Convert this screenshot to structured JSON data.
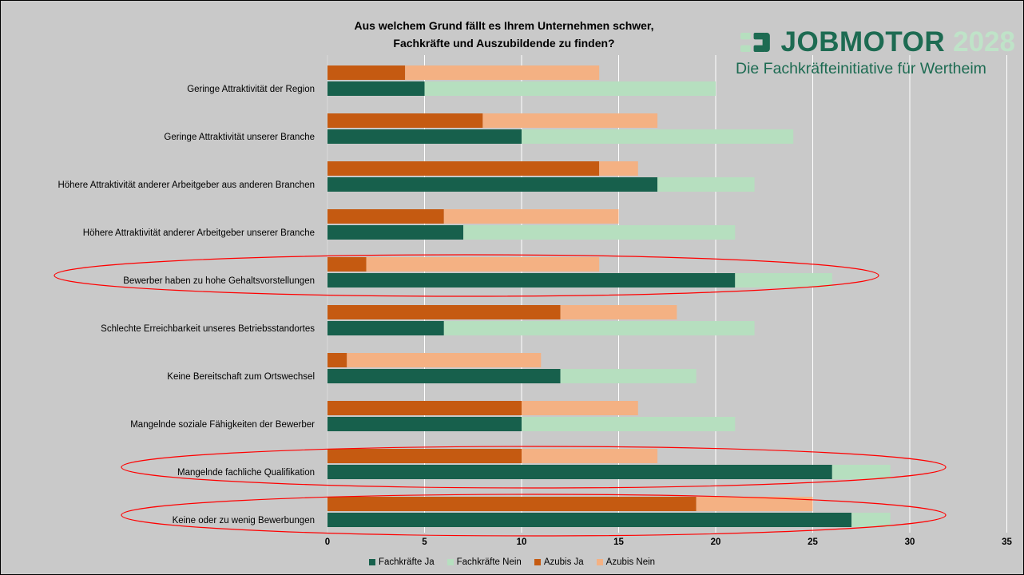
{
  "title": {
    "line1": "Aus welchem Grund fällt es Ihrem Unternehmen schwer,",
    "line2": "Fachkräfte und Auszubildende zu finden?"
  },
  "logo": {
    "word": "JOBMOTOR",
    "year": "2028",
    "subtitle": "Die Fachkräfteinitiative für Wertheim"
  },
  "colors": {
    "fachkraefte_ja": "#17604c",
    "fachkraefte_nein": "#b6dfbf",
    "azubis_ja": "#c55a11",
    "azubis_nein": "#f4b183",
    "highlight": "#ff0000",
    "background": "#c9c9c9"
  },
  "chart_data": {
    "type": "bar",
    "orientation": "horizontal",
    "stacked": true,
    "categories": [
      "Geringe Attraktivität der Region",
      "Geringe Attraktivität unserer Branche",
      "Höhere Attraktivität anderer Arbeitgeber aus anderen Branchen",
      "Höhere Attraktivität anderer Arbeitgeber unserer Branche",
      "Bewerber haben zu hohe Gehaltsvorstellungen",
      "Schlechte Erreichbarkeit unseres Betriebsstandortes",
      "Keine Bereitschaft zum Ortswechsel",
      "Mangelnde soziale Fähigkeiten der Bewerber",
      "Mangelnde fachliche Qualifikation",
      "Keine oder zu wenig Bewerbungen"
    ],
    "series": [
      {
        "name": "Fachkräfte Ja",
        "stack": "Fachkräfte",
        "values": [
          5,
          10,
          17,
          7,
          21,
          6,
          12,
          10,
          26,
          27
        ]
      },
      {
        "name": "Fachkräfte Nein",
        "stack": "Fachkräfte",
        "values": [
          15,
          14,
          5,
          14,
          5,
          16,
          7,
          11,
          3,
          2
        ]
      },
      {
        "name": "Azubis Ja",
        "stack": "Azubis",
        "values": [
          4,
          8,
          14,
          6,
          2,
          12,
          1,
          10,
          10,
          19
        ]
      },
      {
        "name": "Azubis Nein",
        "stack": "Azubis",
        "values": [
          10,
          9,
          2,
          9,
          12,
          6,
          10,
          6,
          7,
          6
        ]
      }
    ],
    "xlim": [
      0,
      35
    ],
    "xticks": [
      0,
      5,
      10,
      15,
      20,
      25,
      30,
      35
    ],
    "grid": true,
    "legend_position": "bottom",
    "highlighted_categories": [
      "Bewerber haben zu hohe Gehaltsvorstellungen",
      "Mangelnde fachliche Qualifikation",
      "Keine oder zu wenig Bewerbungen"
    ]
  }
}
